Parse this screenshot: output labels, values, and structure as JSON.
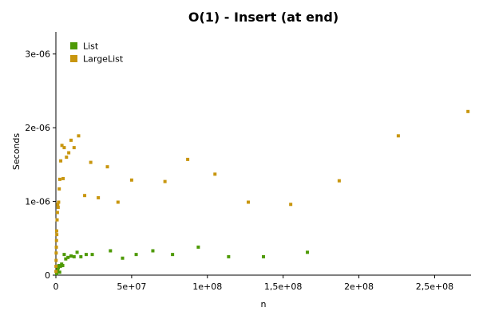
{
  "chart_data": {
    "type": "scatter",
    "title": "O(1) - Insert (at end)",
    "xlabel": "n",
    "ylabel": "Seconds",
    "xlim": [
      0,
      274000000
    ],
    "ylim": [
      0,
      3.3e-06
    ],
    "x_ticks": [
      0,
      50000000,
      100000000,
      150000000,
      200000000,
      250000000
    ],
    "x_tick_labels": [
      "0",
      "5e+07",
      "1e+08",
      "1,5e+08",
      "2e+08",
      "2,5e+08"
    ],
    "y_ticks": [
      0,
      1e-06,
      2e-06,
      3e-06
    ],
    "y_tick_labels": [
      "0",
      "1e-06",
      "2e-06",
      "3e-06"
    ],
    "legend_position": "top-left",
    "grid": false,
    "series": [
      {
        "name": "List",
        "color": "#4e9a06",
        "points": [
          [
            500000,
            2e-08
          ],
          [
            800000,
            5e-08
          ],
          [
            1200000,
            8e-08
          ],
          [
            1600000,
            1e-07
          ],
          [
            2000000,
            1.3e-07
          ],
          [
            2500000,
            4e-08
          ],
          [
            3000000,
            1.2e-07
          ],
          [
            3800000,
            1.5e-07
          ],
          [
            4500000,
            1.3e-07
          ],
          [
            5500000,
            2.8e-07
          ],
          [
            6500000,
            2.2e-07
          ],
          [
            8000000,
            2.4e-07
          ],
          [
            10000000,
            2.6e-07
          ],
          [
            12000000,
            2.5e-07
          ],
          [
            14000000,
            3.1e-07
          ],
          [
            16500000,
            2.5e-07
          ],
          [
            20000000,
            2.8e-07
          ],
          [
            24000000,
            2.8e-07
          ],
          [
            36000000,
            3.3e-07
          ],
          [
            44000000,
            2.3e-07
          ],
          [
            53000000,
            2.8e-07
          ],
          [
            64000000,
            3.3e-07
          ],
          [
            77000000,
            2.8e-07
          ],
          [
            94000000,
            3.8e-07
          ],
          [
            114000000,
            2.5e-07
          ],
          [
            137000000,
            2.5e-07
          ],
          [
            166000000,
            3.1e-07
          ]
        ]
      },
      {
        "name": "LargeList",
        "color": "#c8960f",
        "points": [
          [
            50000,
            5e-08
          ],
          [
            100000,
            1.2e-07
          ],
          [
            150000,
            2e-07
          ],
          [
            200000,
            3e-07
          ],
          [
            300000,
            3.8e-07
          ],
          [
            400000,
            4.7e-07
          ],
          [
            500000,
            6e-07
          ],
          [
            600000,
            5.5e-07
          ],
          [
            800000,
            7.5e-07
          ],
          [
            1000000,
            8.5e-07
          ],
          [
            1200000,
            9.6e-07
          ],
          [
            1500000,
            9.2e-07
          ],
          [
            1800000,
            9.9e-07
          ],
          [
            2200000,
            1.17e-06
          ],
          [
            2600000,
            1.3e-06
          ],
          [
            3200000,
            1.55e-06
          ],
          [
            4000000,
            1.76e-06
          ],
          [
            4800000,
            1.31e-06
          ],
          [
            5500000,
            1.73e-06
          ],
          [
            7000000,
            1.6e-06
          ],
          [
            8500000,
            1.66e-06
          ],
          [
            10000000,
            1.83e-06
          ],
          [
            12000000,
            1.73e-06
          ],
          [
            15000000,
            1.89e-06
          ],
          [
            19000000,
            1.08e-06
          ],
          [
            23000000,
            1.53e-06
          ],
          [
            28000000,
            1.05e-06
          ],
          [
            34000000,
            1.47e-06
          ],
          [
            41000000,
            9.9e-07
          ],
          [
            50000000,
            1.29e-06
          ],
          [
            72000000,
            1.27e-06
          ],
          [
            87000000,
            1.57e-06
          ],
          [
            105000000,
            1.37e-06
          ],
          [
            127000000,
            9.9e-07
          ],
          [
            155000000,
            9.6e-07
          ],
          [
            187000000,
            1.28e-06
          ],
          [
            226000000,
            1.89e-06
          ],
          [
            272000000,
            2.22e-06
          ]
        ]
      }
    ]
  }
}
